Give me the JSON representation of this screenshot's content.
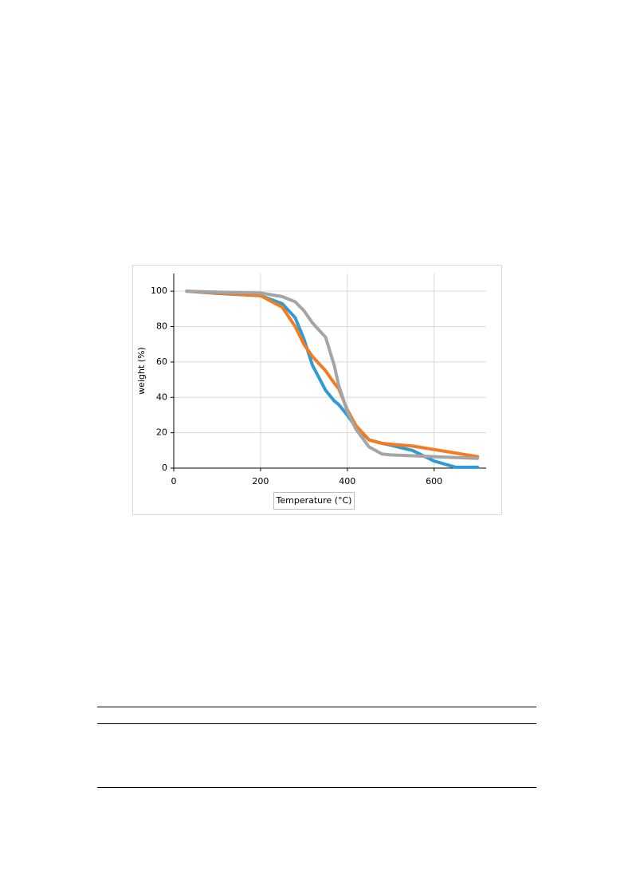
{
  "chart_data": {
    "type": "line",
    "x_label": "Temperature (°C)",
    "y_label": "weight (%)",
    "x": [
      30,
      100,
      200,
      250,
      280,
      300,
      320,
      350,
      370,
      380,
      400,
      420,
      450,
      480,
      500,
      550,
      600,
      650,
      700
    ],
    "series": [
      {
        "color": "#2e9bd6",
        "values": [
          100,
          98.8,
          97.5,
          93,
          85,
          73,
          58,
          44,
          38,
          36,
          30,
          23,
          16,
          14,
          13,
          10,
          4,
          0.5,
          0.5
        ]
      },
      {
        "color": "#f47b20",
        "values": [
          100,
          99,
          97.5,
          91,
          80,
          70,
          63,
          55,
          48,
          45,
          33,
          24,
          16,
          14,
          13.5,
          12.5,
          10.5,
          8.5,
          6.5
        ]
      },
      {
        "color": "#a5a5a5",
        "values": [
          100,
          99.5,
          99,
          97,
          94,
          89,
          82,
          74,
          58,
          47,
          32,
          22,
          12,
          8,
          7.5,
          7,
          6.5,
          6,
          5.5
        ]
      }
    ],
    "xlim": [
      0,
      720
    ],
    "xticks": [
      0,
      200,
      400,
      600
    ],
    "ylim": [
      0,
      110
    ],
    "yticks": [
      0,
      20,
      40,
      60,
      80,
      100
    ],
    "grid": true
  }
}
